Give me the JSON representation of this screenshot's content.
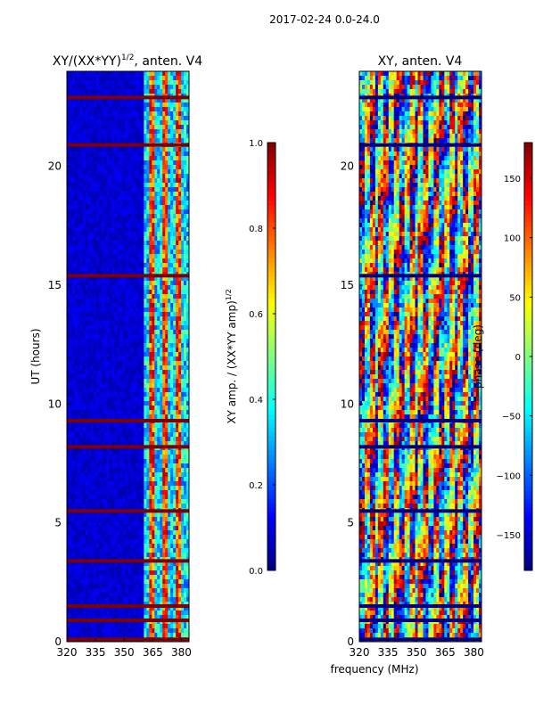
{
  "figure": {
    "suptitle": "2017-02-24 0.0-24.0",
    "shared_xlabel": "frequency (MHz)"
  },
  "chart_data": [
    {
      "type": "heatmap",
      "title": "XY/(XX*YY)^{1/2}, anten. V4",
      "title_main": "XY/(XX*YY)",
      "title_exp": "1/2",
      "title_suffix": ", anten. V4",
      "xlabel": "frequency (MHz)",
      "ylabel": "UT (hours)",
      "xlim": [
        320,
        384
      ],
      "ylim": [
        0,
        24
      ],
      "xticks": [
        320,
        335,
        350,
        365,
        380
      ],
      "xtick_labels": [
        "320",
        "335",
        "350",
        "365",
        "380"
      ],
      "yticks": [
        0,
        5,
        10,
        15,
        20
      ],
      "ytick_labels": [
        "0",
        "5",
        "10",
        "15",
        "20"
      ],
      "rfi_band_hours": [
        0.1,
        0.9,
        1.5,
        3.4,
        5.5,
        8.2,
        9.3,
        15.4,
        20.9,
        22.9
      ],
      "active_band_mhz": [
        361,
        384
      ],
      "colorbar": {
        "label": "XY amp. / (XX*YY amp)^{1/2}",
        "label_main": "XY amp. / (XX*YY amp)",
        "label_exp": "1/2",
        "range": [
          0.0,
          1.0
        ],
        "ticks": [
          0.0,
          0.2,
          0.4,
          0.6,
          0.8,
          1.0
        ],
        "tick_labels": [
          "0.0",
          "0.2",
          "0.4",
          "0.6",
          "0.8",
          "1.0"
        ],
        "colormap": "jet"
      }
    },
    {
      "type": "heatmap",
      "title": "XY, anten. V4",
      "xlabel": "frequency (MHz)",
      "ylabel": "",
      "xlim": [
        320,
        384
      ],
      "ylim": [
        0,
        24
      ],
      "xticks": [
        320,
        335,
        350,
        365,
        380
      ],
      "xtick_labels": [
        "320",
        "335",
        "350",
        "365",
        "380"
      ],
      "yticks": [
        0,
        5,
        10,
        15,
        20
      ],
      "ytick_labels": [
        "0",
        "5",
        "10",
        "15",
        "20"
      ],
      "colorbar": {
        "label": "phase (deg)",
        "range": [
          -180,
          180
        ],
        "ticks": [
          -150,
          -100,
          -50,
          0,
          50,
          100,
          150
        ],
        "tick_labels": [
          "−150",
          "−100",
          "−50",
          "0",
          "50",
          "100",
          "150"
        ],
        "colormap": "jet"
      }
    }
  ],
  "colors": {
    "jet": [
      "#00007f",
      "#0000ff",
      "#007fff",
      "#00ffff",
      "#7fff7f",
      "#ffff00",
      "#ff7f00",
      "#ff0000",
      "#7f0000"
    ],
    "rfi_band": "#7f0000",
    "axis": "#000000"
  }
}
